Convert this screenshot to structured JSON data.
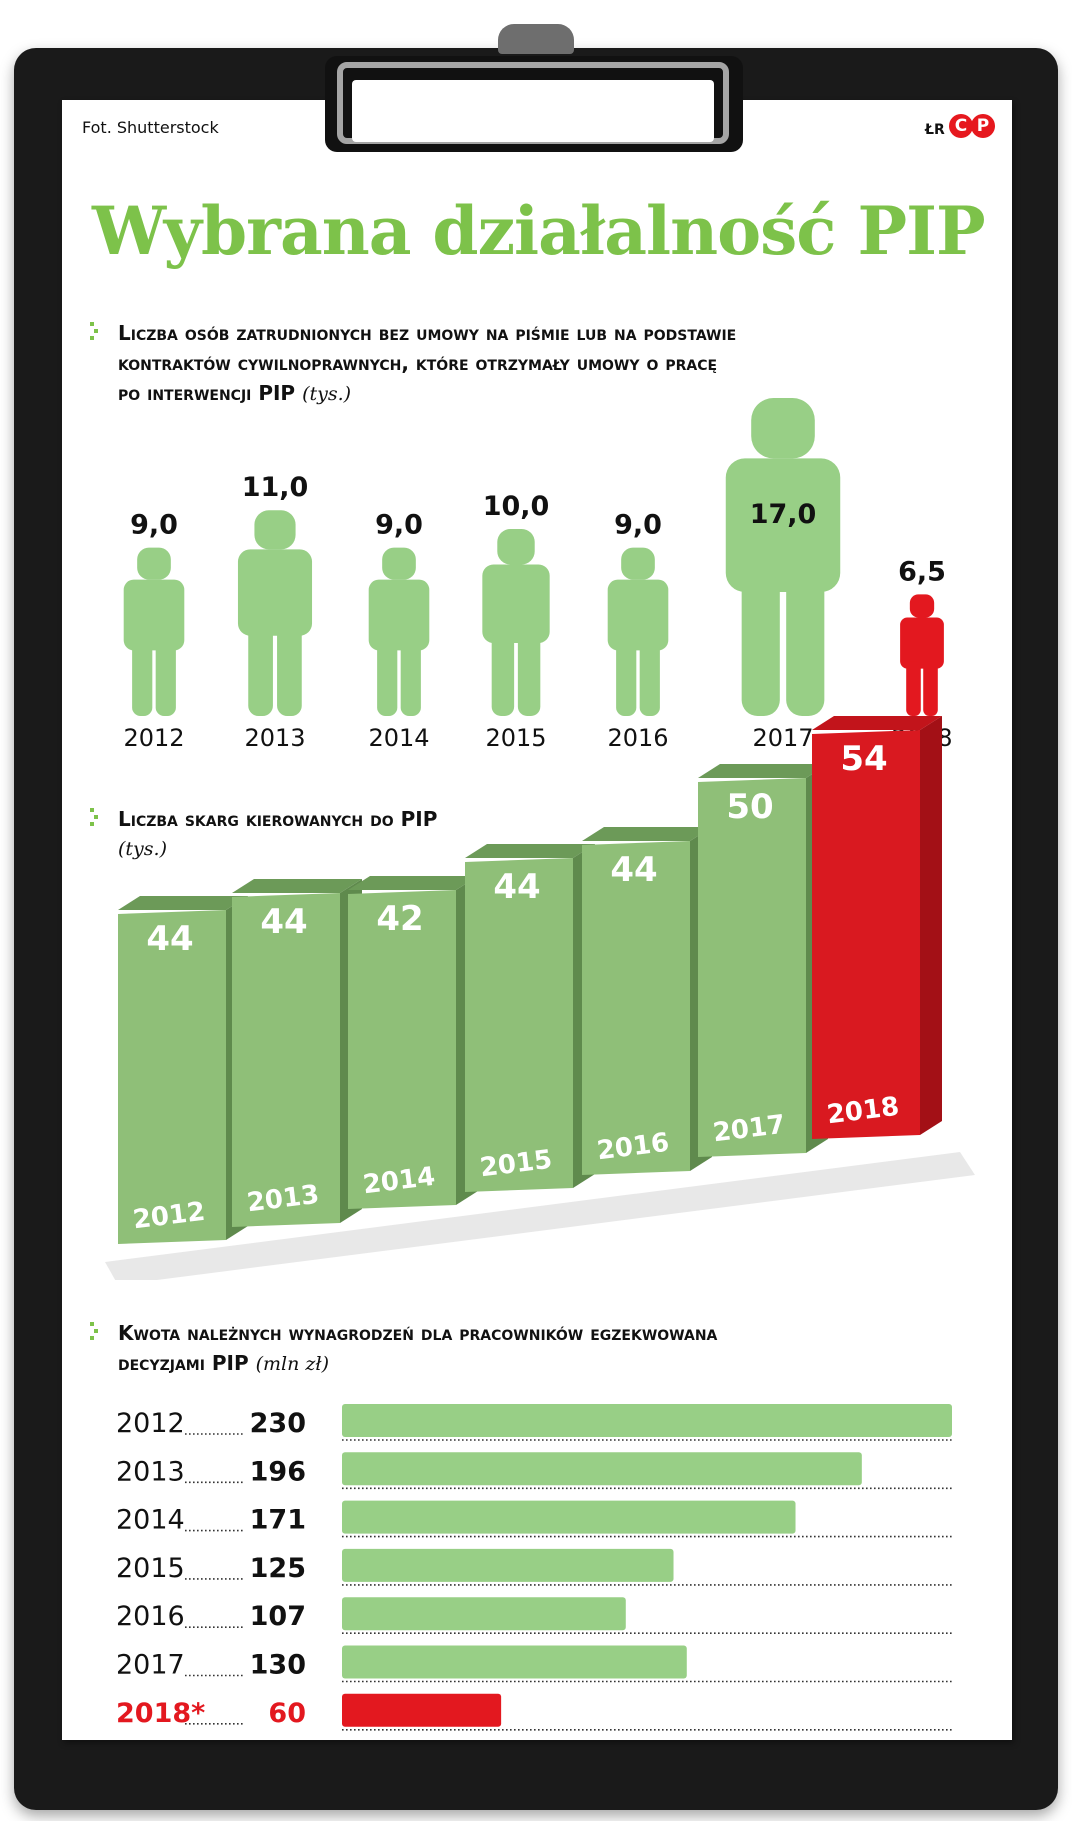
{
  "source": "Fot. Shutterstock",
  "brand": {
    "author": "ŁR",
    "logo_letters": [
      "C",
      "P"
    ]
  },
  "title": "Wybrana działalność PIP",
  "colors": {
    "green": "#98cf86",
    "red": "#e3181f",
    "title_green": "#7dc24a"
  },
  "chart_data": [
    {
      "type": "bar",
      "title": "Liczba osób zatrudnionych bez umowy na piśmie lub na podstawie kontraktów cywilnoprawnych, które otrzymały umowy o pracę po interwencji PIP",
      "title_lines": [
        "Liczba osób zatrudnionych bez umowy na piśmie lub na podstawie",
        "kontraktów cywilnoprawnych, które otrzymały umowy o pracę",
        "po interwencji PIP"
      ],
      "unit": "(tys.)",
      "categories": [
        "2012",
        "2013",
        "2014",
        "2015",
        "2016",
        "2017",
        "2018"
      ],
      "values": [
        9.0,
        11.0,
        9.0,
        10.0,
        9.0,
        17.0,
        6.5
      ],
      "labels": [
        "9,0",
        "11,0",
        "9,0",
        "10,0",
        "9,0",
        "17,0",
        "6,5"
      ],
      "highlight": "2018"
    },
    {
      "type": "bar",
      "title": "Liczba skarg kierowanych do PIP",
      "unit": "(tys.)",
      "categories": [
        "2012",
        "2013",
        "2014",
        "2015",
        "2016",
        "2017",
        "2018"
      ],
      "values": [
        44,
        44,
        42,
        44,
        44,
        50,
        54
      ],
      "labels": [
        "44",
        "44",
        "42",
        "44",
        "44",
        "50",
        "54"
      ],
      "highlight": "2018"
    },
    {
      "type": "bar",
      "orientation": "horizontal",
      "title": "Kwota należnych wynagrodzeń dla pracowników egzekwowana decyzjami PIP",
      "title_lines": [
        "Kwota należnych wynagrodzeń dla pracowników egzekwowana",
        "decyzjami PIP"
      ],
      "unit": "(mln zł)",
      "categories": [
        "2012",
        "2013",
        "2014",
        "2015",
        "2016",
        "2017",
        "2018*"
      ],
      "values": [
        230,
        196,
        171,
        125,
        107,
        130,
        60
      ],
      "labels": [
        "230",
        "196",
        "171",
        "125",
        "107",
        "130",
        "60"
      ],
      "highlight": "2018*"
    }
  ]
}
